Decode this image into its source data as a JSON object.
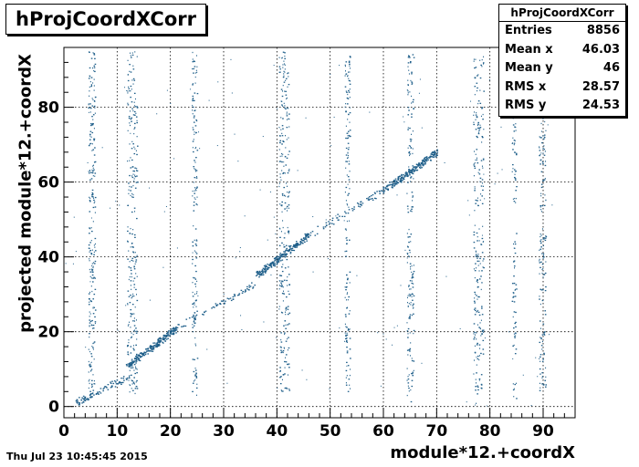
{
  "chart_data": {
    "type": "scatter",
    "title": "hProjCoordXCorr",
    "xlabel": "module*12.+coordX",
    "ylabel": "projected module*12.+coordX",
    "xlim": [
      0,
      96
    ],
    "ylim": [
      -3,
      96
    ],
    "x_ticks": [
      0,
      10,
      20,
      30,
      40,
      50,
      60,
      70,
      80,
      90
    ],
    "y_ticks": [
      0,
      20,
      40,
      60,
      80
    ],
    "grid": true,
    "color": "#1f5f8a",
    "stats": {
      "header": "hProjCoordXCorr",
      "rows": [
        {
          "label": "Entries",
          "value": "8856"
        },
        {
          "label": "Mean x",
          "value": "46.03"
        },
        {
          "label": "Mean y",
          "value": "46"
        },
        {
          "label": "RMS x",
          "value": "28.57"
        },
        {
          "label": "RMS y",
          "value": "24.53"
        }
      ]
    },
    "vertical_bands": [
      {
        "x": 5.2,
        "width": 0.8,
        "density": 0.9
      },
      {
        "x": 12.8,
        "width": 1.2,
        "density": 1.0
      },
      {
        "x": 24.5,
        "width": 0.6,
        "density": 0.6
      },
      {
        "x": 41.3,
        "width": 1.2,
        "density": 1.0
      },
      {
        "x": 53.2,
        "width": 0.6,
        "density": 0.6
      },
      {
        "x": 65.0,
        "width": 0.8,
        "density": 0.7
      },
      {
        "x": 77.8,
        "width": 1.2,
        "density": 0.9
      },
      {
        "x": 84.5,
        "width": 0.5,
        "density": 0.4
      },
      {
        "x": 89.8,
        "width": 0.8,
        "density": 0.7
      }
    ],
    "diagonal_segments": [
      {
        "x": [
          2,
          12
        ],
        "y": [
          1,
          8
        ],
        "density": 0.4
      },
      {
        "x": [
          12,
          21
        ],
        "y": [
          11,
          21
        ],
        "density": 1.0
      },
      {
        "x": [
          21,
          36
        ],
        "y": [
          21,
          33
        ],
        "density": 0.3
      },
      {
        "x": [
          36,
          46
        ],
        "y": [
          35,
          46
        ],
        "density": 1.0
      },
      {
        "x": [
          46,
          60
        ],
        "y": [
          46,
          58
        ],
        "density": 0.3
      },
      {
        "x": [
          60,
          70
        ],
        "y": [
          58,
          68
        ],
        "density": 1.0
      }
    ],
    "y_gaps": [
      [
        0,
        4
      ],
      [
        48,
        52
      ]
    ]
  },
  "footer": {
    "date": "Thu Jul 23 10:45:45 2015"
  }
}
